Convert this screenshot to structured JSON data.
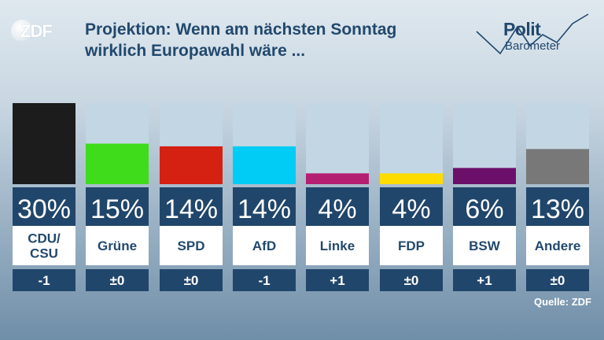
{
  "header": {
    "logo_text": "ZDF",
    "title_line1": "Projektion: Wenn am nächsten Sonntag",
    "title_line2": "wirklich Europawahl wäre ...",
    "brand_line1": "Polit",
    "brand_line2": "Barometer"
  },
  "footer": {
    "source": "Quelle: ZDF"
  },
  "chart_data": {
    "type": "bar",
    "title": "Projektion: Wenn am nächsten Sonntag wirklich Europawahl wäre ...",
    "categories": [
      "CDU/\nCSU",
      "Grüne",
      "SPD",
      "AfD",
      "Linke",
      "FDP",
      "BSW",
      "Andere"
    ],
    "values": [
      30,
      15,
      14,
      14,
      4,
      4,
      6,
      13
    ],
    "value_labels": [
      "30%",
      "15%",
      "14%",
      "14%",
      "4%",
      "4%",
      "6%",
      "13%"
    ],
    "changes": [
      "-1",
      "±0",
      "±0",
      "-1",
      "+1",
      "±0",
      "+1",
      "±0"
    ],
    "colors": [
      "#1c1c1c",
      "#3edc1a",
      "#d42112",
      "#00ccf5",
      "#b51f72",
      "#ffdc00",
      "#6c0f6a",
      "#787878"
    ],
    "ylim": [
      0,
      30
    ],
    "grid": false,
    "legend": "none"
  }
}
